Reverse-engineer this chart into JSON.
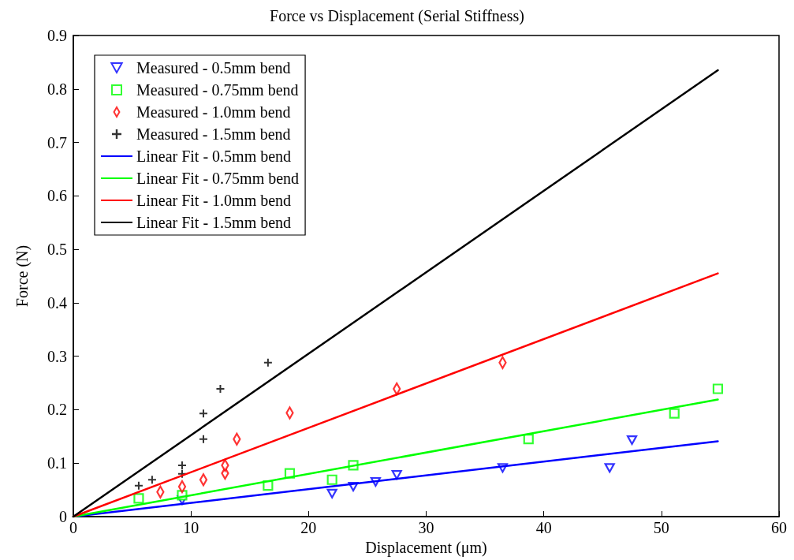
{
  "chart_data": {
    "type": "scatter",
    "title": "Force vs Displacement (Serial Stiffness)",
    "xlabel": "Displacement (μm)",
    "ylabel": "Force (N)",
    "xlim": [
      0,
      60
    ],
    "xticks": [
      0,
      10,
      20,
      30,
      40,
      50,
      60
    ],
    "ylim": [
      0,
      0.9
    ],
    "yticks": [
      0,
      0.1,
      0.2,
      0.3,
      0.4,
      0.5,
      0.6,
      0.7,
      0.8,
      0.9
    ],
    "grid": false,
    "legend": "top left",
    "series": [
      {
        "name": "Measured - 0.5mm bend",
        "marker": "triangle",
        "color": "#0000ff",
        "x": [
          9.25,
          22.0,
          23.8,
          25.7,
          27.5,
          36.5,
          45.6,
          47.5
        ],
        "values": [
          0.031,
          0.043,
          0.056,
          0.065,
          0.078,
          0.091,
          0.091,
          0.143
        ]
      },
      {
        "name": "Measured - 0.75mm bend",
        "marker": "square",
        "color": "#00ff00",
        "x": [
          5.56,
          9.25,
          16.55,
          18.4,
          22.0,
          23.8,
          38.7,
          51.1,
          54.8
        ],
        "values": [
          0.034,
          0.04,
          0.058,
          0.081,
          0.069,
          0.096,
          0.145,
          0.193,
          0.239
        ]
      },
      {
        "name": "Measured - 1.0mm bend",
        "marker": "diamond",
        "color": "#ff0000",
        "x": [
          7.4,
          9.25,
          11.06,
          12.9,
          12.9,
          13.9,
          18.4,
          27.5,
          36.5
        ],
        "values": [
          0.046,
          0.056,
          0.069,
          0.081,
          0.096,
          0.145,
          0.194,
          0.239,
          0.288
        ]
      },
      {
        "name": "Measured - 1.5mm bend",
        "marker": "cross",
        "color": "#000000",
        "x": [
          5.56,
          6.7,
          9.25,
          9.25,
          11.06,
          11.06,
          12.5,
          16.55
        ],
        "values": [
          0.058,
          0.069,
          0.08,
          0.096,
          0.145,
          0.193,
          0.239,
          0.288
        ]
      },
      {
        "name": "Linear Fit - 0.5mm bend",
        "type": "line",
        "marker": "none",
        "color": "#0000ff",
        "x": [
          0,
          54.8
        ],
        "values": [
          0,
          0.141
        ]
      },
      {
        "name": "Linear Fit - 0.75mm bend",
        "type": "line",
        "marker": "none",
        "color": "#00ff00",
        "x": [
          0,
          54.8
        ],
        "values": [
          0,
          0.219
        ]
      },
      {
        "name": "Linear Fit - 1.0mm bend",
        "type": "line",
        "marker": "none",
        "color": "#ff0000",
        "x": [
          0,
          54.8
        ],
        "values": [
          0,
          0.455
        ]
      },
      {
        "name": "Linear Fit - 1.5mm bend",
        "type": "line",
        "marker": "none",
        "color": "#000000",
        "x": [
          0,
          54.8
        ],
        "values": [
          0,
          0.835
        ]
      }
    ]
  }
}
